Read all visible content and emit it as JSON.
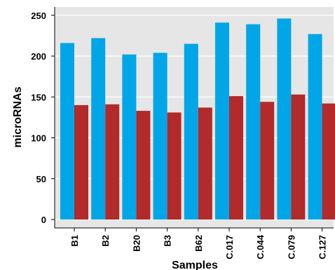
{
  "chart_data": {
    "type": "bar",
    "title": "",
    "xlabel": "Samples",
    "ylabel": "microRNAs",
    "categories": [
      "B1",
      "B2",
      "B20",
      "B3",
      "B62",
      "C.017",
      "C.044",
      "C.079",
      "C.127"
    ],
    "series": [
      {
        "color": "#00a6e8",
        "values": [
          216,
          222,
          202,
          204,
          215,
          241,
          239,
          246,
          227
        ]
      },
      {
        "color": "#b22a2a",
        "values": [
          140,
          141,
          133,
          131,
          137,
          151,
          144,
          153,
          142
        ]
      }
    ],
    "ylim": [
      0,
      256
    ],
    "yticks": [
      0,
      50,
      100,
      150,
      200,
      250
    ],
    "grid": true,
    "legend": "none",
    "plot_background": "#e6e6e6"
  }
}
